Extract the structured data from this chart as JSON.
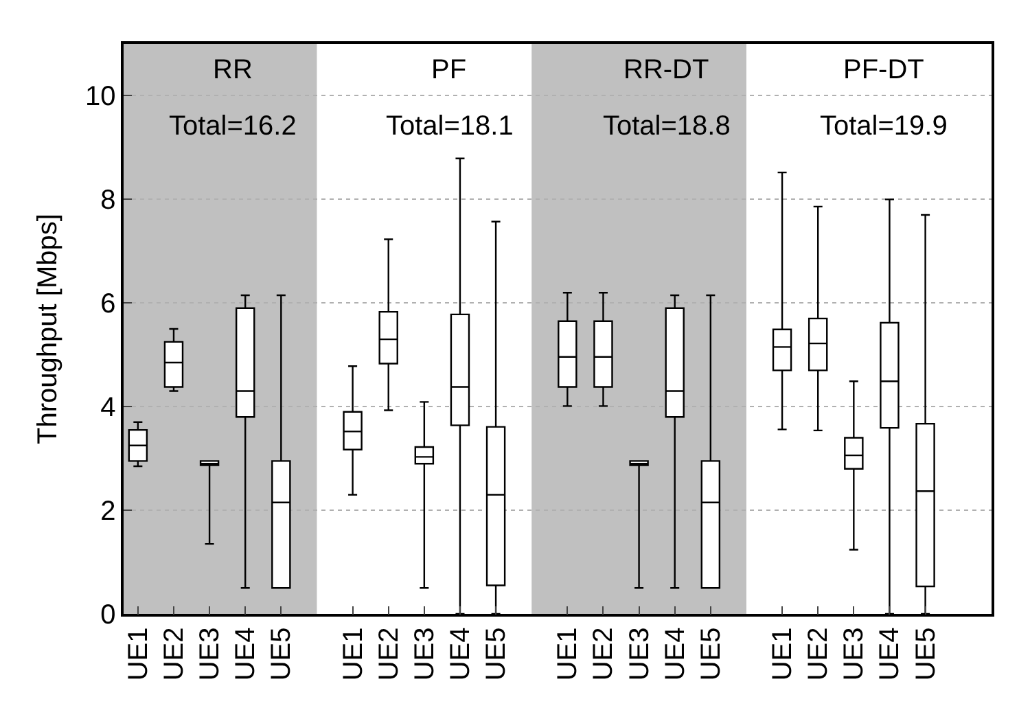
{
  "chart_data": {
    "type": "box",
    "ylabel": "Throughput [Mbps]",
    "categories": [
      "UE1",
      "UE2",
      "UE3",
      "UE4",
      "UE5",
      null,
      "UE1",
      "UE2",
      "UE3",
      "UE4",
      "UE5",
      null,
      "UE1",
      "UE2",
      "UE3",
      "UE4",
      "UE5",
      null,
      "UE1",
      "UE2",
      "UE3",
      "UE4",
      "UE5"
    ],
    "ylim": [
      0,
      11
    ],
    "yticks": [
      0,
      2,
      4,
      6,
      8,
      10
    ],
    "grid": "y",
    "color": "#000000",
    "boxes": [
      {
        "low": 2.85,
        "q1": 2.95,
        "median": 3.25,
        "q3": 3.55,
        "high": 3.7
      },
      {
        "low": 4.3,
        "q1": 4.38,
        "median": 4.85,
        "q3": 5.25,
        "high": 5.5
      },
      {
        "low": 1.35,
        "q1": 2.87,
        "median": 2.9,
        "q3": 2.95,
        "high": 2.95
      },
      {
        "low": 0.5,
        "q1": 3.8,
        "median": 4.3,
        "q3": 5.9,
        "high": 6.15
      },
      {
        "low": 0.5,
        "q1": 0.5,
        "median": 2.15,
        "q3": 2.95,
        "high": 6.15
      },
      null,
      {
        "low": 2.3,
        "q1": 3.17,
        "median": 3.52,
        "q3": 3.9,
        "high": 4.78
      },
      {
        "low": 3.93,
        "q1": 4.83,
        "median": 5.3,
        "q3": 5.83,
        "high": 7.23
      },
      {
        "low": 0.5,
        "q1": 2.9,
        "median": 3.03,
        "q3": 3.22,
        "high": 4.09
      },
      {
        "low": 0,
        "q1": 3.64,
        "median": 4.38,
        "q3": 5.78,
        "high": 8.79
      },
      {
        "low": 0,
        "q1": 0.55,
        "median": 2.3,
        "q3": 3.61,
        "high": 7.57
      },
      null,
      {
        "low": 4.01,
        "q1": 4.38,
        "median": 4.96,
        "q3": 5.65,
        "high": 6.2
      },
      {
        "low": 4.01,
        "q1": 4.38,
        "median": 4.96,
        "q3": 5.65,
        "high": 6.2
      },
      {
        "low": 0.5,
        "q1": 2.87,
        "median": 2.9,
        "q3": 2.95,
        "high": 2.95
      },
      {
        "low": 0.5,
        "q1": 3.8,
        "median": 4.3,
        "q3": 5.9,
        "high": 6.15
      },
      {
        "low": 0.5,
        "q1": 0.5,
        "median": 2.15,
        "q3": 2.95,
        "high": 6.15
      },
      null,
      {
        "low": 3.56,
        "q1": 4.7,
        "median": 5.15,
        "q3": 5.49,
        "high": 8.52
      },
      {
        "low": 3.54,
        "q1": 4.7,
        "median": 5.22,
        "q3": 5.7,
        "high": 7.86
      },
      {
        "low": 1.24,
        "q1": 2.8,
        "median": 3.06,
        "q3": 3.4,
        "high": 4.49
      },
      {
        "low": 0,
        "q1": 3.59,
        "median": 4.49,
        "q3": 5.62,
        "high": 8.0
      },
      {
        "low": 0,
        "q1": 0.53,
        "median": 2.37,
        "q3": 3.67,
        "high": 7.7
      }
    ],
    "annotations": [
      "RR",
      "Total=16.2",
      "PF",
      "Total=18.1",
      "RR-DT",
      "Total=18.8",
      "PF-DT",
      "Total=19.9"
    ]
  }
}
